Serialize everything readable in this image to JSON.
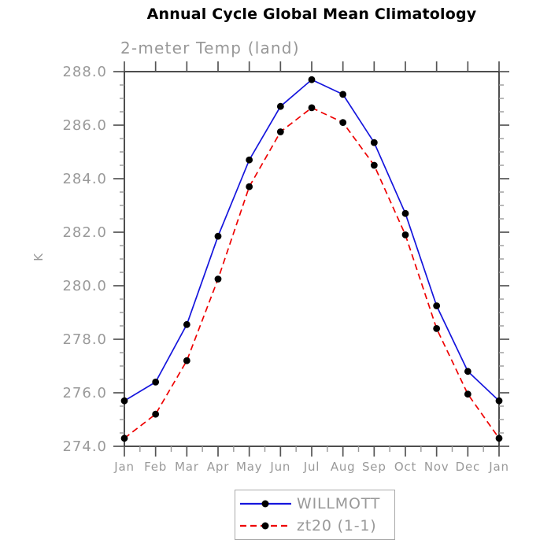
{
  "header": {
    "title": "Annual Cycle Global Mean Climatology",
    "subtitle": "2-meter Temp (land)"
  },
  "chart_data": {
    "type": "line",
    "categories": [
      "Jan",
      "Feb",
      "Mar",
      "Apr",
      "May",
      "Jun",
      "Jul",
      "Aug",
      "Sep",
      "Oct",
      "Nov",
      "Dec",
      "Jan"
    ],
    "series": [
      {
        "name": "WILLMOTT",
        "color": "#1515dd",
        "style": "solid",
        "marker": "filled-circle",
        "marker_color": "#000000",
        "values": [
          275.7,
          276.4,
          278.55,
          281.85,
          284.7,
          286.7,
          287.7,
          287.15,
          285.35,
          282.7,
          279.25,
          276.8,
          275.7
        ]
      },
      {
        "name": "zt20 (1-1)",
        "color": "#ee0000",
        "style": "dashed",
        "marker": "filled-circle",
        "marker_color": "#000000",
        "values": [
          274.3,
          275.2,
          277.2,
          280.25,
          283.7,
          285.75,
          286.65,
          286.1,
          284.5,
          281.9,
          278.4,
          275.95,
          274.3
        ]
      }
    ],
    "title": "Annual Cycle Global Mean Climatology",
    "subtitle": "2-meter Temp (land)",
    "xlabel": "",
    "ylabel": "K",
    "ylim": [
      274.0,
      288.0
    ],
    "ytick_step": 2.0,
    "ytick_minor_step": 0.5,
    "ytick_label_format": "one-decimal",
    "xtick_minor": "half-month",
    "grid": false,
    "legend_position": "bottom-center",
    "axis_ticks": "outward-all-four-sides"
  },
  "colors": {
    "series1": "#1515dd",
    "series2": "#ee0000",
    "marker": "#000000",
    "axis_frame": "#222222",
    "major_tick": "#555555",
    "minor_tick": "#999999",
    "tick_label_text": "#9a9a9a",
    "subtitle_text": "#989898",
    "legend_border": "#aaaaaa",
    "background": "#ffffff"
  }
}
